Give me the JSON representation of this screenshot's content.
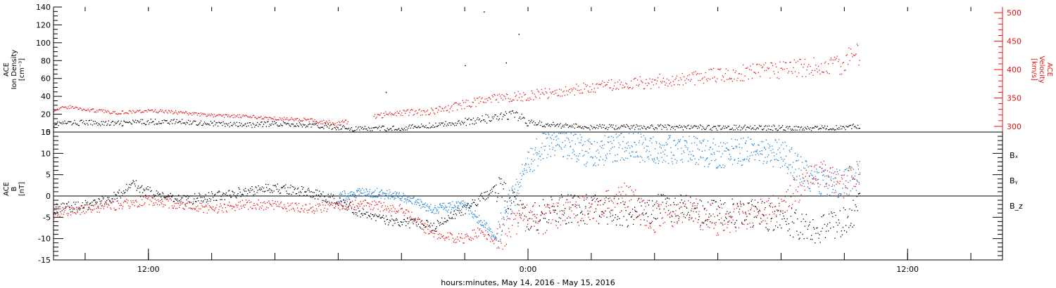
{
  "colors": {
    "black": "#000000",
    "red": "#e81010",
    "blue": "#1c7fd8"
  },
  "x_axis": {
    "label": "hours:minutes, May 14, 2016 - May 15, 2016",
    "range_hours": [
      9,
      39
    ],
    "major_ticks": [
      {
        "hour": 12,
        "label": "12:00"
      },
      {
        "hour": 24,
        "label": "0:00"
      },
      {
        "hour": 36,
        "label": "12:00"
      }
    ],
    "minor_step_hours": 2
  },
  "chart_data": [
    {
      "type": "scatter",
      "panel": "top",
      "ylabel": [
        "ACE",
        "Ion Density",
        "[cm⁻³]"
      ],
      "ylim": [
        0,
        140
      ],
      "yticks": [
        0,
        20,
        40,
        60,
        80,
        100,
        120,
        140
      ],
      "y2label": [
        "ACE",
        "Velocity",
        "[km/s]"
      ],
      "y2lim": [
        290,
        510
      ],
      "y2ticks": [
        300,
        350,
        400,
        450,
        500
      ],
      "series": [
        {
          "name": "",
          "color": "black",
          "axis": "left",
          "x": [
            9.0,
            10.0,
            11.0,
            12.0,
            13.0,
            14.0,
            15.0,
            16.0,
            17.0,
            18.0,
            18.5,
            19.0,
            20.0,
            21.0,
            22.0,
            22.5,
            23.0,
            23.5,
            24.0,
            24.5,
            25.0,
            26.0,
            27.0,
            28.0,
            29.0,
            30.0,
            31.0,
            32.0,
            33.0,
            34.0,
            34.5
          ],
          "y": [
            10,
            11,
            10,
            12,
            12,
            10,
            8,
            10,
            8,
            6,
            4,
            4,
            5,
            8,
            12,
            14,
            16,
            20,
            12,
            9,
            8,
            6,
            6,
            6,
            6,
            5,
            6,
            5,
            5,
            6,
            7
          ]
        },
        {
          "name": "",
          "color": "red",
          "axis": "right",
          "x": [
            9.0,
            9.5,
            10.0,
            11.0,
            12.0,
            13.0,
            14.0,
            15.0,
            16.0,
            17.0,
            18.0,
            19.0,
            19.5,
            20.0,
            21.0,
            21.5,
            22.0,
            22.5,
            23.0,
            24.0,
            25.0,
            26.0,
            27.0,
            28.0,
            29.0,
            30.0,
            31.0,
            32.0,
            33.0,
            34.0,
            34.3,
            34.5
          ],
          "y": [
            330,
            335,
            330,
            325,
            328,
            325,
            320,
            318,
            315,
            312,
            305,
            318,
            322,
            325,
            328,
            332,
            340,
            345,
            350,
            355,
            362,
            368,
            375,
            380,
            385,
            392,
            395,
            400,
            405,
            410,
            440,
            420
          ]
        }
      ],
      "outliers": {
        "x": [
          22.6,
          23.7,
          23.3,
          19.5,
          22.0
        ],
        "y": [
          135,
          110,
          78,
          45,
          75
        ]
      }
    },
    {
      "type": "scatter",
      "panel": "bottom",
      "ylabel": [
        "ACE",
        "B",
        "[nT]"
      ],
      "ylim": [
        -15,
        15
      ],
      "yticks": [
        -15,
        -10,
        -5,
        0,
        5,
        10,
        15
      ],
      "series": [
        {
          "name": "Bₓ",
          "color": "black",
          "x": [
            9.0,
            10.0,
            11.0,
            11.5,
            12.0,
            13.0,
            14.0,
            15.0,
            16.0,
            17.0,
            18.0,
            19.0,
            20.0,
            21.0,
            21.5,
            22.0,
            23.0,
            24.0,
            25.0,
            26.0,
            27.0,
            28.0,
            29.0,
            30.0,
            31.0,
            32.0,
            33.0,
            34.0,
            34.5
          ],
          "y": [
            -3,
            -2,
            0,
            3,
            1,
            -1,
            0,
            1,
            2,
            1,
            -1,
            -5,
            -6,
            -7,
            -5,
            -3,
            2,
            -5,
            -3,
            -3,
            -4,
            -3,
            -3,
            -4,
            -4,
            -5,
            -8,
            -6,
            -2
          ]
        },
        {
          "name": "Bᵧ",
          "color": "blue",
          "x": [
            18.0,
            19.0,
            20.0,
            21.0,
            22.0,
            23.0,
            23.5,
            24.0,
            24.5,
            25.0,
            26.0,
            27.0,
            28.0,
            29.0,
            30.0,
            31.0,
            32.0,
            33.0,
            34.0,
            34.5
          ],
          "y": [
            0,
            1,
            0,
            -3,
            -2,
            -10,
            0,
            8,
            12,
            13,
            10,
            12,
            11,
            11,
            10,
            11,
            10,
            4,
            3,
            5
          ]
        },
        {
          "name": "B_z",
          "color": "red",
          "x": [
            9.0,
            10.0,
            11.0,
            12.0,
            13.0,
            14.0,
            15.0,
            16.0,
            17.0,
            18.0,
            19.0,
            20.0,
            21.0,
            22.0,
            22.5,
            23.0,
            23.5,
            24.0,
            24.5,
            25.0,
            26.0,
            27.0,
            28.0,
            29.0,
            30.0,
            31.0,
            32.0,
            33.0,
            34.0,
            34.5
          ],
          "y": [
            -4,
            -3,
            -2,
            -1,
            -2,
            -3,
            -2,
            -2,
            -3,
            -2,
            -2,
            -3,
            -9,
            -10,
            -8,
            -11,
            -6,
            -5,
            -6,
            -4,
            -3,
            0,
            -5,
            -3,
            -6,
            -4,
            -3,
            6,
            3,
            7
          ]
        }
      ],
      "zero_line": true,
      "legend_position": "right"
    }
  ]
}
